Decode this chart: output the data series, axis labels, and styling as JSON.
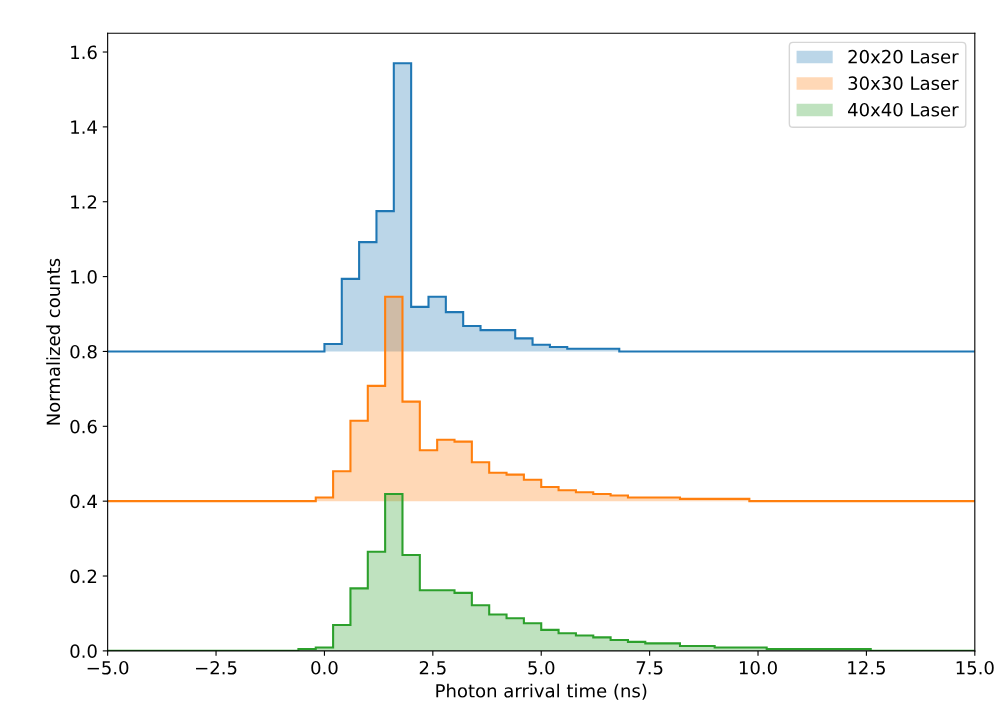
{
  "chart_data": {
    "type": "histogram",
    "xlabel": "Photon arrival time (ns)",
    "ylabel": "Normalized counts",
    "bins": [
      -5,
      -0.6,
      -0.2,
      0,
      0.2,
      0.4,
      0.6,
      0.8,
      1.0,
      1.2,
      1.4,
      1.6,
      1.8,
      2.0,
      2.2,
      2.4,
      2.6,
      2.8,
      3.0,
      3.2,
      3.4,
      3.6,
      3.8,
      4.0,
      4.2,
      4.4,
      4.6,
      4.8,
      5.0,
      5.2,
      5.4,
      5.6,
      5.8,
      6.0,
      6.2,
      6.4,
      6.6,
      6.8,
      7.0,
      7.4,
      8.2,
      9.0,
      9.8,
      10.2,
      12.6,
      15
    ],
    "series": [
      {
        "name": "20x20 Laser",
        "color": "#1f77b4",
        "values": [
          0.8,
          0.8,
          0.8,
          0.82,
          0.82,
          0.994,
          0.994,
          1.092,
          1.092,
          1.175,
          1.175,
          1.57,
          1.57,
          0.919,
          0.919,
          0.946,
          0.946,
          0.905,
          0.905,
          0.868,
          0.868,
          0.857,
          0.857,
          0.857,
          0.857,
          0.835,
          0.835,
          0.818,
          0.818,
          0.812,
          0.812,
          0.807,
          0.807,
          0.807,
          0.807,
          0.807,
          0.807,
          0.8,
          0.8,
          0.8,
          0.8,
          0.8,
          0.8,
          0.8,
          0.8
        ]
      },
      {
        "name": "30x30 Laser",
        "color": "#ff7f0e",
        "values": [
          0.4,
          0.4,
          0.41,
          0.41,
          0.48,
          0.48,
          0.615,
          0.615,
          0.708,
          0.708,
          0.946,
          0.946,
          0.666,
          0.666,
          0.536,
          0.536,
          0.564,
          0.564,
          0.559,
          0.559,
          0.504,
          0.504,
          0.476,
          0.476,
          0.471,
          0.471,
          0.457,
          0.457,
          0.438,
          0.438,
          0.429,
          0.429,
          0.424,
          0.424,
          0.419,
          0.419,
          0.415,
          0.415,
          0.41,
          0.41,
          0.406,
          0.406,
          0.4,
          0.4,
          0.4
        ]
      },
      {
        "name": "40x40 Laser",
        "color": "#2ca02c",
        "values": [
          0,
          0.005,
          0.009,
          0.009,
          0.069,
          0.069,
          0.167,
          0.167,
          0.265,
          0.265,
          0.419,
          0.419,
          0.256,
          0.256,
          0.162,
          0.162,
          0.162,
          0.162,
          0.155,
          0.155,
          0.122,
          0.122,
          0.097,
          0.097,
          0.087,
          0.087,
          0.074,
          0.074,
          0.056,
          0.056,
          0.047,
          0.047,
          0.041,
          0.041,
          0.036,
          0.036,
          0.029,
          0.029,
          0.024,
          0.02,
          0.013,
          0.009,
          0.009,
          0.005,
          0
        ]
      }
    ],
    "xlim": [
      -5,
      15
    ],
    "xticks": [
      {
        "value": -5,
        "label": "−5.0"
      },
      {
        "value": -2.5,
        "label": "−2.5"
      },
      {
        "value": 0,
        "label": "0.0"
      },
      {
        "value": 2.5,
        "label": "2.5"
      },
      {
        "value": 5,
        "label": "5.0"
      },
      {
        "value": 7.5,
        "label": "7.5"
      },
      {
        "value": 10,
        "label": "10.0"
      },
      {
        "value": 12.5,
        "label": "12.5"
      },
      {
        "value": 15,
        "label": "15.0"
      }
    ],
    "ylim": [
      0,
      1.65
    ],
    "yticks": [
      {
        "value": 0,
        "label": "0.0"
      },
      {
        "value": 0.2,
        "label": "0.2"
      },
      {
        "value": 0.4,
        "label": "0.4"
      },
      {
        "value": 0.6,
        "label": "0.6"
      },
      {
        "value": 0.8,
        "label": "0.8"
      },
      {
        "value": 1.0,
        "label": "1.0"
      },
      {
        "value": 1.2,
        "label": "1.2"
      },
      {
        "value": 1.4,
        "label": "1.4"
      },
      {
        "value": 1.6,
        "label": "1.6"
      }
    ],
    "grid": false,
    "legend": "top right"
  }
}
